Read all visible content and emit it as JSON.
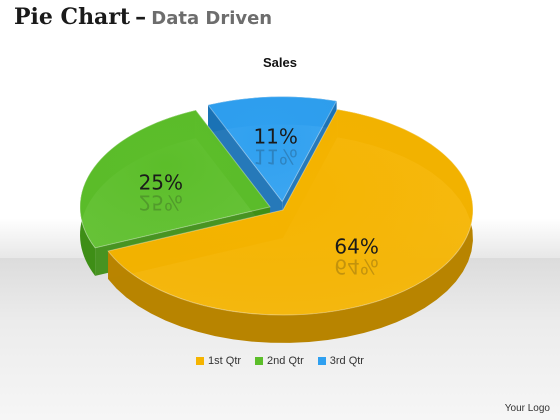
{
  "header": {
    "title": "Pie Chart",
    "dash": "–",
    "subtitle": "Data Driven"
  },
  "footer": {
    "logo_text": "Your Logo"
  },
  "colors": {
    "q1": "#F5B400",
    "q1_side": "#B88400",
    "q2": "#5CBE2A",
    "q2_side": "#3E8E16",
    "q3": "#2FA0F0",
    "q3_side": "#1A72B5"
  },
  "chart_data": {
    "type": "pie",
    "title": "Sales",
    "categories": [
      "1st Qtr",
      "2nd Qtr",
      "3rd Qtr"
    ],
    "values": [
      64,
      25,
      11
    ],
    "data_labels": [
      "64%",
      "25%",
      "11%"
    ],
    "legend_position": "bottom",
    "style": "3d-exploded"
  }
}
